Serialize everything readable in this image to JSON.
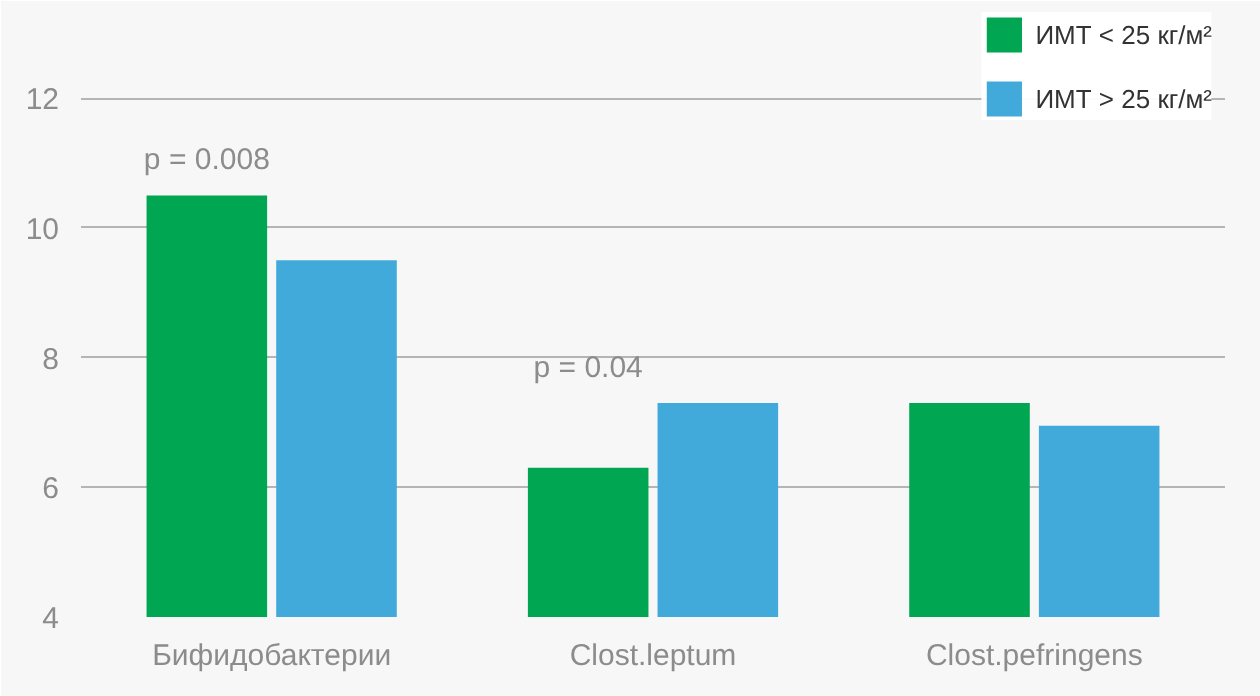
{
  "chart_data": {
    "type": "bar",
    "categories": [
      "Бифидобактерии",
      "Clost.leptum",
      "Clost.pefringens"
    ],
    "series": [
      {
        "name": "ИМТ < 25 кг/м²",
        "color": "#00a651",
        "values": [
          10.5,
          6.3,
          7.3
        ]
      },
      {
        "name": "ИМТ > 25 кг/м²",
        "color": "#41aadb",
        "values": [
          9.5,
          7.3,
          6.95
        ]
      }
    ],
    "ylim": [
      4,
      13.5
    ],
    "yticks": [
      4,
      6,
      8,
      10,
      12
    ],
    "grid": "y",
    "legend": "top right",
    "annotations": [
      "p = 0.008",
      "p = 0.04"
    ]
  }
}
